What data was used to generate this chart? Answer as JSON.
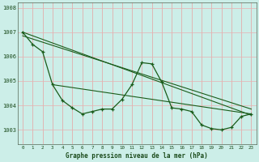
{
  "title": "Graphe pression niveau de la mer (hPa)",
  "bg_color": "#cceee8",
  "grid_color_v": "#e8a0a0",
  "grid_color_h": "#e8b0b0",
  "line_color": "#1a5c1a",
  "ylim": [
    1002.4,
    1008.2
  ],
  "yticks": [
    1003,
    1004,
    1005,
    1006,
    1007,
    1008
  ],
  "xlim": [
    -0.5,
    23.5
  ],
  "series_main": [
    1007.0,
    1006.5,
    1006.2,
    1004.85,
    1004.2,
    1003.9,
    1003.65,
    1003.75,
    1003.85,
    1003.85,
    1004.25,
    1004.85,
    1005.75,
    1005.7,
    1004.95,
    1003.9,
    1003.85,
    1003.75,
    1003.2,
    1003.05,
    1003.0,
    1003.1,
    1003.55,
    1003.65
  ],
  "trend1_x": [
    0,
    23
  ],
  "trend1_y": [
    1007.0,
    1003.6
  ],
  "trend2_x": [
    0,
    23
  ],
  "trend2_y": [
    1006.85,
    1003.85
  ],
  "trend3_x": [
    3,
    23
  ],
  "trend3_y": [
    1004.85,
    1003.65
  ]
}
